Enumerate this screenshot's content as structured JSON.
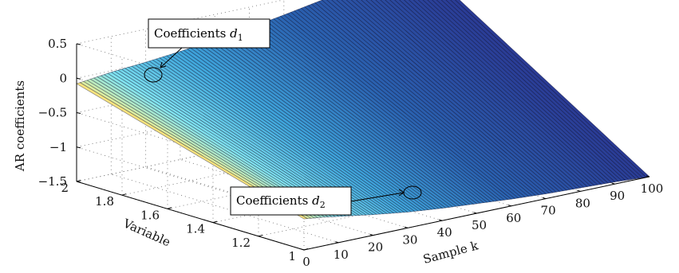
{
  "chart_data": {
    "type": "surface",
    "xlabel": "Sample k",
    "ylabel": "Variable",
    "zlabel": "AR coefficients",
    "xlim": [
      0,
      100
    ],
    "ylim": [
      1,
      2
    ],
    "zlim": [
      -1.5,
      0.5
    ],
    "x_ticks": [
      "0",
      "10",
      "20",
      "30",
      "40",
      "50",
      "60",
      "70",
      "80",
      "90",
      "100"
    ],
    "y_ticks": [
      "1",
      "1.2",
      "1.4",
      "1.6",
      "1.8",
      "2"
    ],
    "z_ticks": [
      "-1.5",
      "-1",
      "-0.5",
      "0",
      "0.5"
    ],
    "grid": true,
    "colormap": [
      "#f26a21",
      "#f7f08a",
      "#7fe3f0",
      "#3fa6dc",
      "#2a62b0",
      "#2a3a94"
    ],
    "series": [
      {
        "name": "Coefficients d1",
        "variable": 2,
        "k": [
          0,
          5,
          10,
          20,
          30,
          40,
          50,
          60,
          70,
          80,
          90,
          100
        ],
        "values": [
          -0.08,
          -0.05,
          -0.02,
          0.02,
          0.07,
          0.13,
          0.2,
          0.28,
          0.37,
          0.45,
          0.52,
          0.58
        ]
      },
      {
        "name": "Coefficients d2",
        "variable": 1,
        "k": [
          0,
          5,
          10,
          20,
          30,
          40,
          50,
          60,
          70,
          80,
          90,
          100
        ],
        "values": [
          -1.05,
          -1.08,
          -1.12,
          -1.2,
          -1.27,
          -1.32,
          -1.36,
          -1.4,
          -1.43,
          -1.45,
          -1.47,
          -1.5
        ]
      }
    ],
    "annotations": [
      {
        "id": "d1",
        "prefix": "Coefficients ",
        "symbol": "d",
        "sub": "1"
      },
      {
        "id": "d2",
        "prefix": "Coefficients ",
        "symbol": "d",
        "sub": "2"
      }
    ]
  }
}
